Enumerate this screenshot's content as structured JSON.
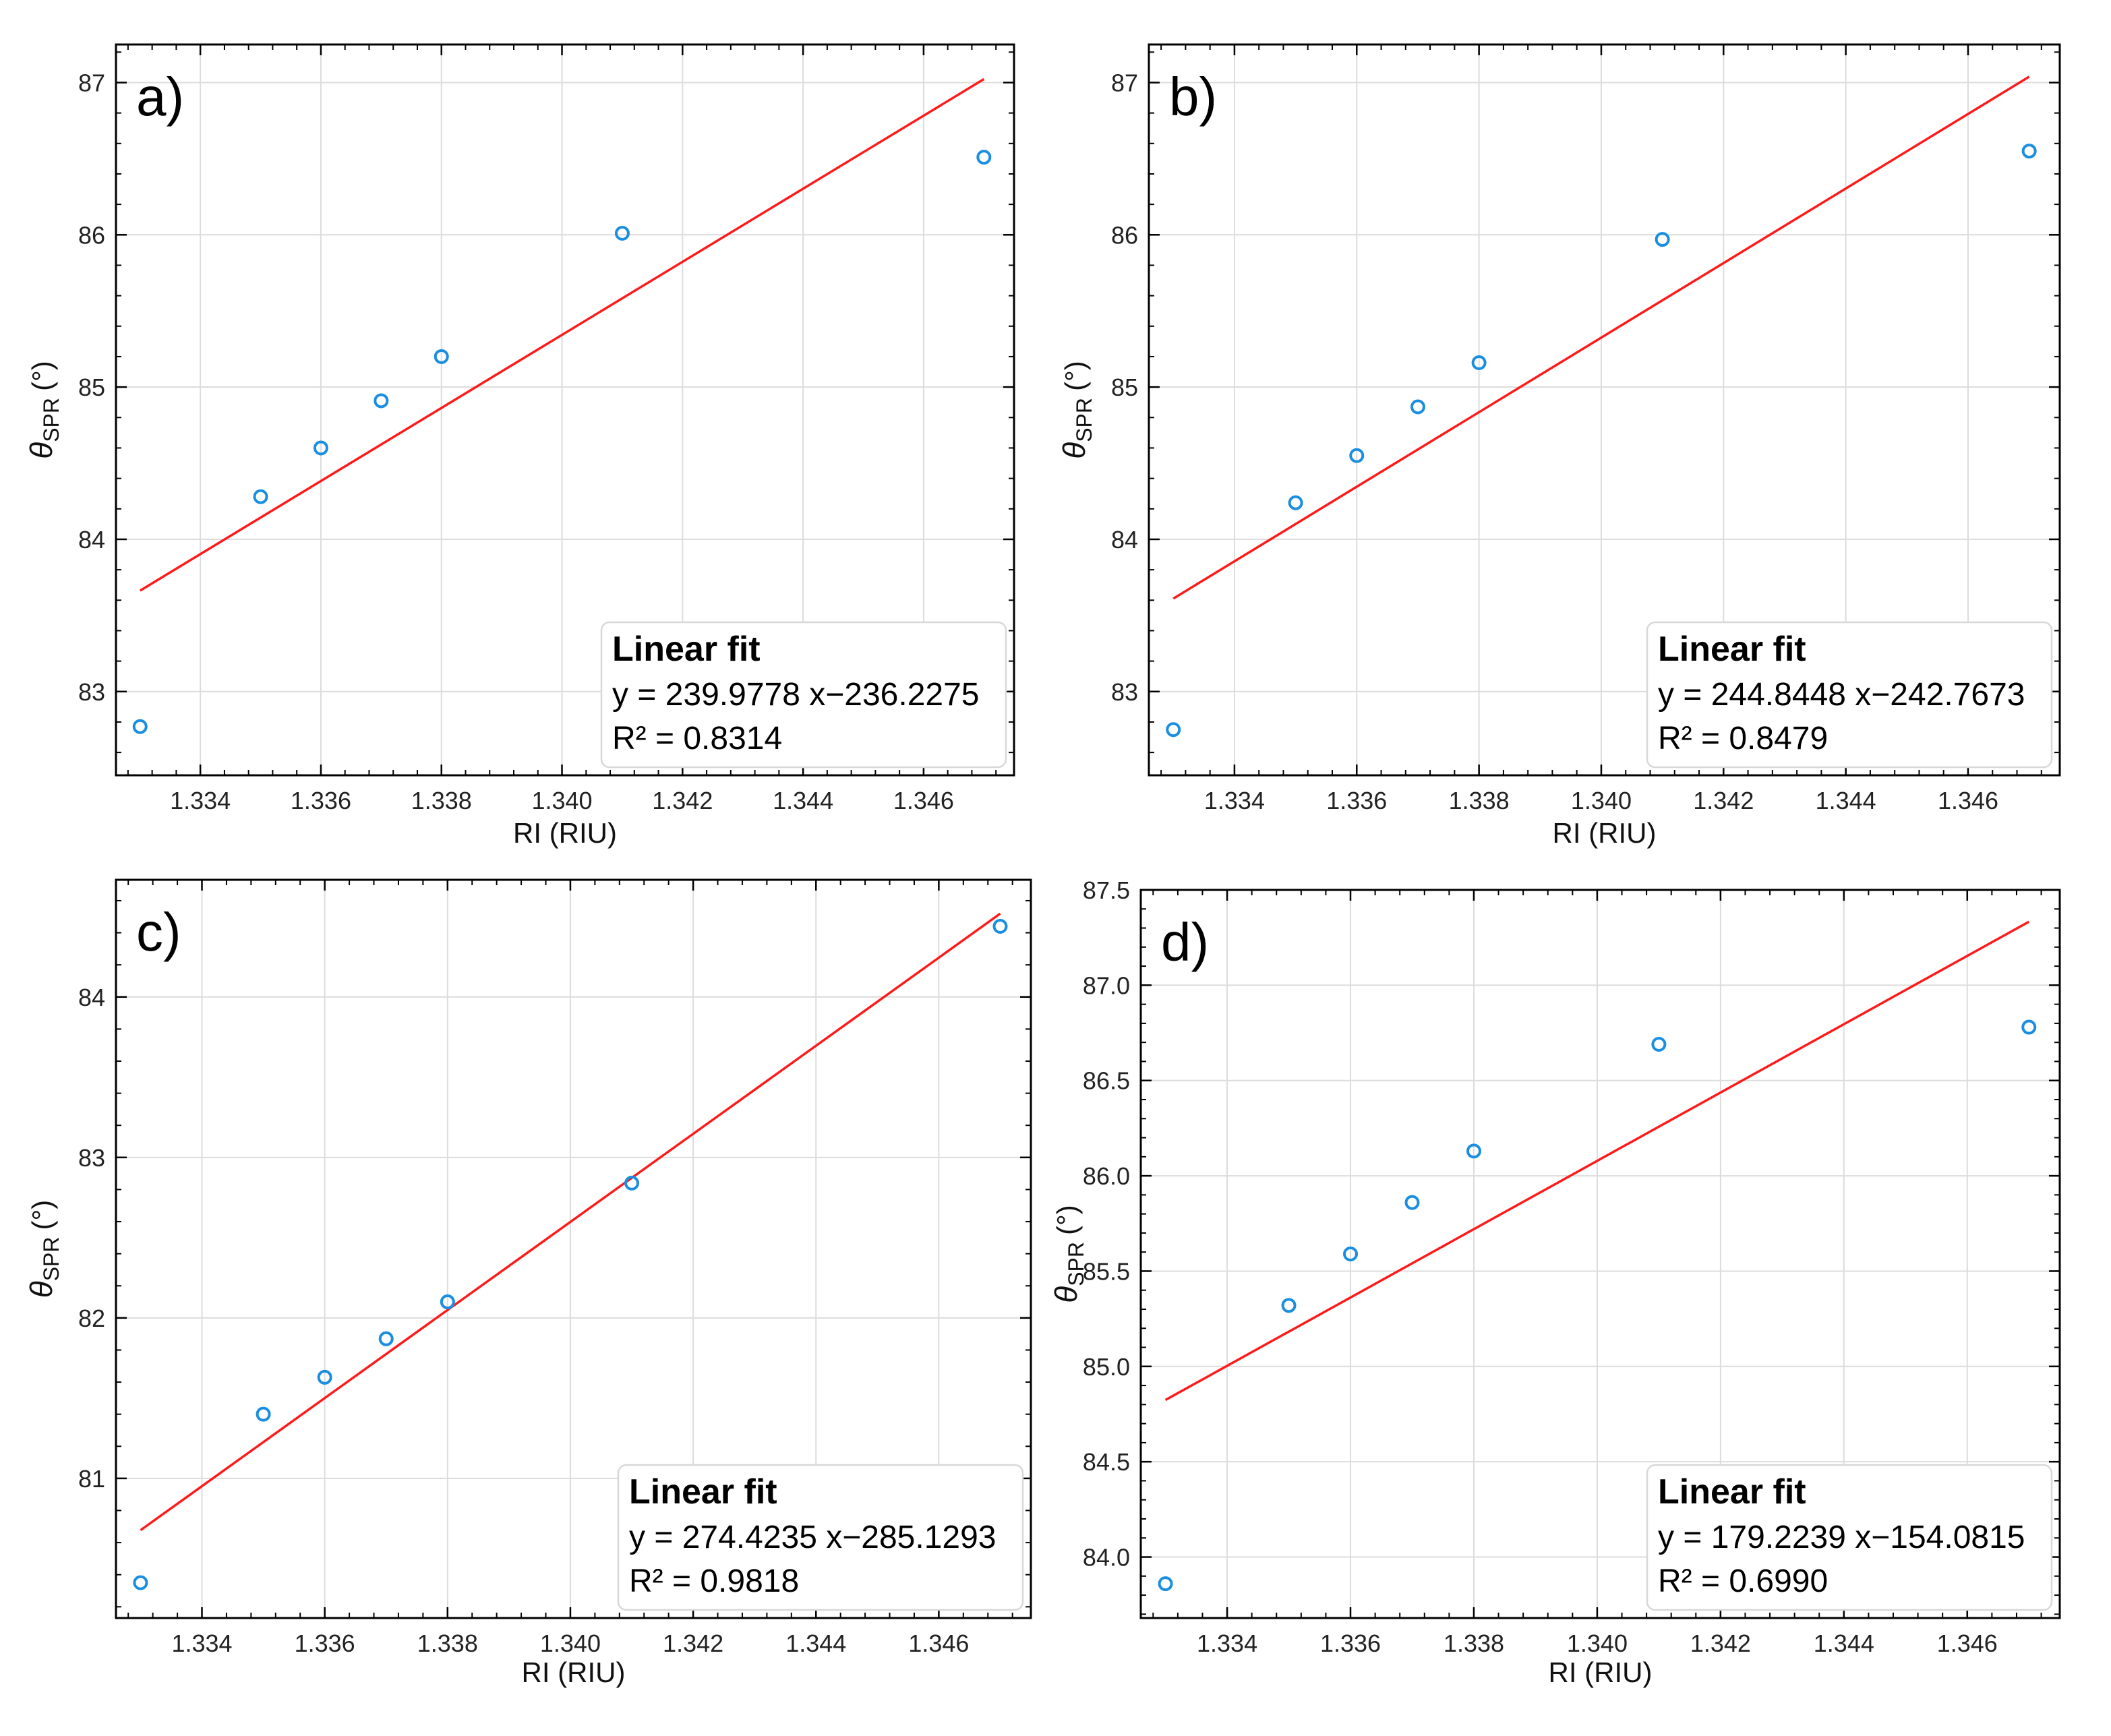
{
  "chart_data": [
    {
      "type": "scatter",
      "panel_label": "a)",
      "xlabel": "RI (RIU)",
      "ylabel_symbol": "θ",
      "ylabel_sub": "SPR",
      "ylabel_unit": "(°)",
      "xlim": [
        1.3326,
        1.3475
      ],
      "ylim": [
        82.45,
        87.25
      ],
      "xticks": [
        1.334,
        1.336,
        1.338,
        1.34,
        1.342,
        1.344,
        1.346
      ],
      "xtick_labels": [
        "1.334",
        "1.336",
        "1.338",
        "1.340",
        "1.342",
        "1.344",
        "1.346"
      ],
      "yticks": [
        83,
        84,
        85,
        86,
        87
      ],
      "ytick_labels": [
        "83",
        "84",
        "85",
        "86",
        "87"
      ],
      "grid": true,
      "x": [
        1.333,
        1.335,
        1.336,
        1.337,
        1.338,
        1.341,
        1.347
      ],
      "y": [
        82.77,
        84.28,
        84.6,
        84.91,
        85.2,
        86.01,
        86.51
      ],
      "fit": {
        "slope": 239.9778,
        "intercept": -236.2275
      },
      "legend": {
        "title": "Linear fit",
        "equation": "y = 239.9778 x−236.2275",
        "r2": "R² = 0.8314",
        "position": "bottom-right"
      },
      "colors": {
        "points": "#1a8ee0",
        "fit": "#ff1a1a"
      }
    },
    {
      "type": "scatter",
      "panel_label": "b)",
      "xlabel": "RI (RIU)",
      "ylabel_symbol": "θ",
      "ylabel_sub": "SPR",
      "ylabel_unit": "(°)",
      "xlim": [
        1.3326,
        1.3475
      ],
      "ylim": [
        82.45,
        87.25
      ],
      "xticks": [
        1.334,
        1.336,
        1.338,
        1.34,
        1.342,
        1.344,
        1.346
      ],
      "xtick_labels": [
        "1.334",
        "1.336",
        "1.338",
        "1.340",
        "1.342",
        "1.344",
        "1.346"
      ],
      "yticks": [
        83,
        84,
        85,
        86,
        87
      ],
      "ytick_labels": [
        "83",
        "84",
        "85",
        "86",
        "87"
      ],
      "grid": true,
      "x": [
        1.333,
        1.335,
        1.336,
        1.337,
        1.338,
        1.341,
        1.347
      ],
      "y": [
        82.75,
        84.24,
        84.55,
        84.87,
        85.16,
        85.97,
        86.55
      ],
      "fit": {
        "slope": 244.8448,
        "intercept": -242.7673
      },
      "legend": {
        "title": "Linear fit",
        "equation": "y = 244.8448 x−242.7673",
        "r2": "R² = 0.8479",
        "position": "bottom-right"
      },
      "colors": {
        "points": "#1a8ee0",
        "fit": "#ff1a1a"
      }
    },
    {
      "type": "scatter",
      "panel_label": "c)",
      "xlabel": "RI (RIU)",
      "ylabel_symbol": "θ",
      "ylabel_sub": "SPR",
      "ylabel_unit": "(°)",
      "xlim": [
        1.3326,
        1.3475
      ],
      "ylim": [
        80.13,
        84.73
      ],
      "xticks": [
        1.334,
        1.336,
        1.338,
        1.34,
        1.342,
        1.344,
        1.346
      ],
      "xtick_labels": [
        "1.334",
        "1.336",
        "1.338",
        "1.340",
        "1.342",
        "1.344",
        "1.346"
      ],
      "yticks": [
        81,
        82,
        83,
        84
      ],
      "ytick_labels": [
        "81",
        "82",
        "83",
        "84"
      ],
      "grid": true,
      "x": [
        1.333,
        1.335,
        1.336,
        1.337,
        1.338,
        1.341,
        1.347
      ],
      "y": [
        80.35,
        81.4,
        81.63,
        81.87,
        82.1,
        82.84,
        84.44
      ],
      "fit": {
        "slope": 274.4235,
        "intercept": -285.1293
      },
      "legend": {
        "title": "Linear fit",
        "equation": "y = 274.4235 x−285.1293",
        "r2": "R² = 0.9818",
        "position": "bottom-right"
      },
      "colors": {
        "points": "#1a8ee0",
        "fit": "#ff1a1a"
      }
    },
    {
      "type": "scatter",
      "panel_label": "d)",
      "xlabel": "RI (RIU)",
      "ylabel_symbol": "θ",
      "ylabel_sub": "SPR",
      "ylabel_unit": "(°)",
      "xlim": [
        1.3326,
        1.3475
      ],
      "ylim": [
        83.68,
        87.5
      ],
      "xticks": [
        1.334,
        1.336,
        1.338,
        1.34,
        1.342,
        1.344,
        1.346
      ],
      "xtick_labels": [
        "1.334",
        "1.336",
        "1.338",
        "1.340",
        "1.342",
        "1.344",
        "1.346"
      ],
      "yticks": [
        84.0,
        84.5,
        85.0,
        85.5,
        86.0,
        86.5,
        87.0,
        87.5
      ],
      "ytick_labels": [
        "84.0",
        "84.5",
        "85.0",
        "85.5",
        "86.0",
        "86.5",
        "87.0",
        "87.5"
      ],
      "grid": true,
      "x": [
        1.333,
        1.335,
        1.336,
        1.337,
        1.338,
        1.341,
        1.347
      ],
      "y": [
        83.86,
        85.32,
        85.59,
        85.86,
        86.13,
        86.69,
        86.78
      ],
      "fit": {
        "slope": 179.2239,
        "intercept": -154.0815
      },
      "legend": {
        "title": "Linear fit",
        "equation": "y = 179.2239 x−154.0815",
        "r2": "R² = 0.6990",
        "position": "bottom-right"
      },
      "colors": {
        "points": "#1a8ee0",
        "fit": "#ff1a1a"
      }
    }
  ]
}
